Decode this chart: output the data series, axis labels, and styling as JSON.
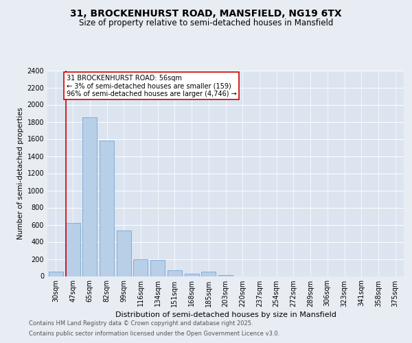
{
  "title_line1": "31, BROCKENHURST ROAD, MANSFIELD, NG19 6TX",
  "title_line2": "Size of property relative to semi-detached houses in Mansfield",
  "xlabel": "Distribution of semi-detached houses by size in Mansfield",
  "ylabel": "Number of semi-detached properties",
  "categories": [
    "30sqm",
    "47sqm",
    "65sqm",
    "82sqm",
    "99sqm",
    "116sqm",
    "134sqm",
    "151sqm",
    "168sqm",
    "185sqm",
    "203sqm",
    "220sqm",
    "237sqm",
    "254sqm",
    "272sqm",
    "289sqm",
    "306sqm",
    "323sqm",
    "341sqm",
    "358sqm",
    "375sqm"
  ],
  "values": [
    50,
    620,
    1850,
    1580,
    530,
    195,
    190,
    65,
    30,
    55,
    10,
    0,
    0,
    0,
    0,
    0,
    0,
    0,
    0,
    0,
    0
  ],
  "bar_color": "#b8cfe8",
  "bar_edge_color": "#6699cc",
  "vline_color": "#cc0000",
  "vline_x_index": 1,
  "annotation_text": "31 BROCKENHURST ROAD: 56sqm\n← 3% of semi-detached houses are smaller (159)\n96% of semi-detached houses are larger (4,746) →",
  "annotation_box_color": "#ffffff",
  "annotation_box_edge_color": "#cc0000",
  "ylim": [
    0,
    2400
  ],
  "yticks": [
    0,
    200,
    400,
    600,
    800,
    1000,
    1200,
    1400,
    1600,
    1800,
    2000,
    2200,
    2400
  ],
  "background_color": "#e8edf4",
  "plot_bg_color": "#dce4f0",
  "footer_line1": "Contains HM Land Registry data © Crown copyright and database right 2025.",
  "footer_line2": "Contains public sector information licensed under the Open Government Licence v3.0.",
  "title_fontsize": 10,
  "subtitle_fontsize": 8.5,
  "tick_fontsize": 7,
  "ylabel_fontsize": 7.5,
  "xlabel_fontsize": 8,
  "footer_fontsize": 6,
  "annot_fontsize": 7
}
